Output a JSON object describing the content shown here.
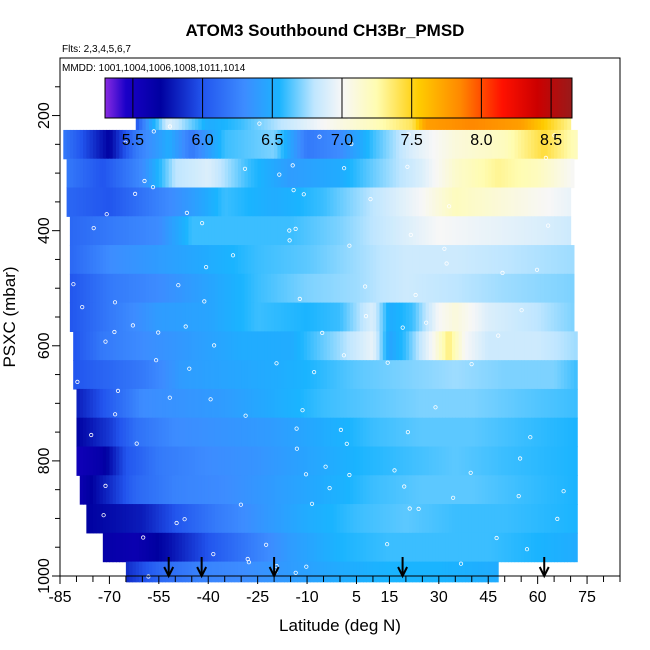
{
  "chart_data": {
    "type": "heatmap",
    "title": "ATOM3 Southbound CH3Br_PMSD",
    "flights_label": "Flts: 2,3,4,5,6,7",
    "mmdd_label": "MMDD: 1001,1004,1006,1008,1011,1014",
    "xlabel": "Latitude (deg N)",
    "ylabel": "PSXC (mbar)",
    "xlim": [
      -85,
      85
    ],
    "ylim": [
      1000,
      100
    ],
    "x_ticks": [
      -85,
      -70,
      -55,
      -40,
      -25,
      -10,
      5,
      15,
      30,
      45,
      60,
      75
    ],
    "x_tick_labels": [
      "-85",
      "-70",
      "-55",
      "-40",
      "-25",
      "-10",
      "5",
      "15",
      "30",
      "45",
      "60",
      "75"
    ],
    "y_ticks": [
      200,
      400,
      600,
      800,
      1000
    ],
    "y_tick_labels": [
      "200",
      "400",
      "600",
      "800",
      "1000"
    ],
    "colorbar": {
      "range": [
        5.3,
        8.65
      ],
      "ticks": [
        5.5,
        6.0,
        6.5,
        7.0,
        7.5,
        8.0,
        8.5
      ],
      "tick_labels": [
        "5.5",
        "6.0",
        "6.5",
        "7.0",
        "7.5",
        "8.0",
        "8.5"
      ],
      "stops": [
        {
          "v": 5.3,
          "c": "#8a2be2"
        },
        {
          "v": 5.45,
          "c": "#1a00c8"
        },
        {
          "v": 5.7,
          "c": "#0000a0"
        },
        {
          "v": 6.0,
          "c": "#2255ee"
        },
        {
          "v": 6.3,
          "c": "#3d8cff"
        },
        {
          "v": 6.55,
          "c": "#1ab4ff"
        },
        {
          "v": 6.8,
          "c": "#bfe6ff"
        },
        {
          "v": 7.0,
          "c": "#f7f7f7"
        },
        {
          "v": 7.25,
          "c": "#fffcb0"
        },
        {
          "v": 7.55,
          "c": "#ffcc00"
        },
        {
          "v": 7.85,
          "c": "#ff8800"
        },
        {
          "v": 8.15,
          "c": "#ff1100"
        },
        {
          "v": 8.4,
          "c": "#cc0000"
        },
        {
          "v": 8.65,
          "c": "#991a1a"
        }
      ]
    },
    "arrow_latitudes": [
      -52,
      -42,
      -20,
      19,
      62
    ],
    "bands": [
      {
        "p": [
          175,
          225
        ],
        "lat": [
          -62,
          70
        ],
        "k": [
          [
            -62,
            6.0
          ],
          [
            -58,
            6.4
          ],
          [
            -52,
            6.9
          ],
          [
            -40,
            6.5
          ],
          [
            -30,
            6.6
          ],
          [
            -18,
            6.8
          ],
          [
            -5,
            7.0
          ],
          [
            10,
            7.2
          ],
          [
            22,
            7.4
          ],
          [
            26,
            7.75
          ],
          [
            40,
            7.85
          ],
          [
            55,
            7.75
          ],
          [
            62,
            7.55
          ],
          [
            70,
            7.3
          ]
        ]
      },
      {
        "p": [
          225,
          275
        ],
        "lat": [
          -84,
          72
        ],
        "k": [
          [
            -84,
            6.2
          ],
          [
            -70,
            5.7
          ],
          [
            -62,
            6.2
          ],
          [
            -52,
            6.5
          ],
          [
            -45,
            6.2
          ],
          [
            -35,
            6.6
          ],
          [
            -20,
            6.7
          ],
          [
            -10,
            6.2
          ],
          [
            0,
            6.3
          ],
          [
            10,
            6.6
          ],
          [
            22,
            6.9
          ],
          [
            35,
            7.1
          ],
          [
            50,
            7.2
          ],
          [
            62,
            7.45
          ],
          [
            72,
            7.2
          ]
        ]
      },
      {
        "p": [
          275,
          325
        ],
        "lat": [
          -83,
          71
        ],
        "k": [
          [
            -83,
            6.2
          ],
          [
            -72,
            6.0
          ],
          [
            -60,
            6.3
          ],
          [
            -50,
            6.8
          ],
          [
            -40,
            6.9
          ],
          [
            -28,
            6.6
          ],
          [
            -15,
            6.4
          ],
          [
            0,
            6.5
          ],
          [
            12,
            6.7
          ],
          [
            25,
            6.9
          ],
          [
            35,
            7.15
          ],
          [
            48,
            7.3
          ],
          [
            60,
            7.2
          ],
          [
            71,
            7.0
          ]
        ]
      },
      {
        "p": [
          325,
          375
        ],
        "lat": [
          -83,
          70
        ],
        "k": [
          [
            -83,
            6.1
          ],
          [
            -70,
            6.0
          ],
          [
            -58,
            6.2
          ],
          [
            -45,
            6.4
          ],
          [
            -35,
            6.6
          ],
          [
            -20,
            6.5
          ],
          [
            -5,
            6.6
          ],
          [
            10,
            6.8
          ],
          [
            25,
            7.0
          ],
          [
            35,
            7.2
          ],
          [
            50,
            7.1
          ],
          [
            70,
            6.95
          ]
        ]
      },
      {
        "p": [
          375,
          425
        ],
        "lat": [
          -82,
          70
        ],
        "k": [
          [
            -82,
            6.1
          ],
          [
            -70,
            6.2
          ],
          [
            -55,
            6.3
          ],
          [
            -45,
            6.6
          ],
          [
            -30,
            6.6
          ],
          [
            -15,
            6.6
          ],
          [
            0,
            6.7
          ],
          [
            15,
            6.85
          ],
          [
            30,
            7.0
          ],
          [
            45,
            6.95
          ],
          [
            60,
            6.9
          ],
          [
            70,
            6.85
          ]
        ]
      },
      {
        "p": [
          425,
          475
        ],
        "lat": [
          -82,
          71
        ],
        "k": [
          [
            -82,
            6.1
          ],
          [
            -70,
            6.3
          ],
          [
            -55,
            6.4
          ],
          [
            -40,
            6.5
          ],
          [
            -25,
            6.6
          ],
          [
            -10,
            6.65
          ],
          [
            5,
            6.75
          ],
          [
            20,
            6.85
          ],
          [
            35,
            6.85
          ],
          [
            50,
            6.8
          ],
          [
            71,
            6.75
          ]
        ]
      },
      {
        "p": [
          475,
          525
        ],
        "lat": [
          -82,
          71
        ],
        "k": [
          [
            -82,
            6.0
          ],
          [
            -70,
            6.2
          ],
          [
            -55,
            6.3
          ],
          [
            -40,
            6.45
          ],
          [
            -25,
            6.6
          ],
          [
            -10,
            6.7
          ],
          [
            5,
            6.75
          ],
          [
            20,
            6.85
          ],
          [
            35,
            6.8
          ],
          [
            50,
            6.75
          ],
          [
            71,
            6.7
          ]
        ]
      },
      {
        "p": [
          525,
          575
        ],
        "lat": [
          -82,
          71
        ],
        "k": [
          [
            -82,
            6.0
          ],
          [
            -70,
            6.2
          ],
          [
            -55,
            6.4
          ],
          [
            -40,
            6.45
          ],
          [
            -25,
            6.6
          ],
          [
            -10,
            6.55
          ],
          [
            0,
            6.6
          ],
          [
            10,
            6.9
          ],
          [
            15,
            6.5
          ],
          [
            22,
            6.6
          ],
          [
            30,
            7.0
          ],
          [
            35,
            7.1
          ],
          [
            45,
            6.9
          ],
          [
            60,
            6.8
          ],
          [
            71,
            6.7
          ]
        ]
      },
      {
        "p": [
          575,
          625
        ],
        "lat": [
          -81,
          72
        ],
        "k": [
          [
            -81,
            6.0
          ],
          [
            -72,
            6.2
          ],
          [
            -60,
            6.3
          ],
          [
            -45,
            6.4
          ],
          [
            -30,
            6.5
          ],
          [
            -15,
            6.5
          ],
          [
            0,
            6.75
          ],
          [
            10,
            6.95
          ],
          [
            15,
            6.45
          ],
          [
            20,
            6.6
          ],
          [
            28,
            7.0
          ],
          [
            33,
            7.35
          ],
          [
            38,
            7.0
          ],
          [
            45,
            6.85
          ],
          [
            60,
            6.85
          ],
          [
            72,
            6.75
          ]
        ]
      },
      {
        "p": [
          625,
          675
        ],
        "lat": [
          -81,
          72
        ],
        "k": [
          [
            -81,
            6.0
          ],
          [
            -70,
            6.1
          ],
          [
            -60,
            6.2
          ],
          [
            -48,
            6.4
          ],
          [
            -35,
            6.45
          ],
          [
            -20,
            6.5
          ],
          [
            -10,
            6.55
          ],
          [
            5,
            6.65
          ],
          [
            20,
            6.7
          ],
          [
            35,
            6.75
          ],
          [
            50,
            6.7
          ],
          [
            65,
            6.7
          ],
          [
            72,
            6.6
          ]
        ]
      },
      {
        "p": [
          675,
          725
        ],
        "lat": [
          -80,
          72
        ],
        "k": [
          [
            -80,
            5.8
          ],
          [
            -72,
            6.0
          ],
          [
            -60,
            6.3
          ],
          [
            -48,
            6.35
          ],
          [
            -35,
            6.4
          ],
          [
            -20,
            6.5
          ],
          [
            -5,
            6.6
          ],
          [
            10,
            6.65
          ],
          [
            25,
            6.7
          ],
          [
            40,
            6.7
          ],
          [
            55,
            6.65
          ],
          [
            72,
            6.6
          ]
        ]
      },
      {
        "p": [
          725,
          775
        ],
        "lat": [
          -80,
          72
        ],
        "k": [
          [
            -80,
            5.7
          ],
          [
            -70,
            5.9
          ],
          [
            -62,
            6.15
          ],
          [
            -50,
            6.3
          ],
          [
            -35,
            6.35
          ],
          [
            -20,
            6.4
          ],
          [
            -5,
            6.5
          ],
          [
            10,
            6.6
          ],
          [
            25,
            6.65
          ],
          [
            40,
            6.65
          ],
          [
            55,
            6.6
          ],
          [
            72,
            6.55
          ]
        ]
      },
      {
        "p": [
          775,
          825
        ],
        "lat": [
          -80,
          72
        ],
        "k": [
          [
            -80,
            5.55
          ],
          [
            -72,
            5.65
          ],
          [
            -65,
            6.0
          ],
          [
            -55,
            6.2
          ],
          [
            -40,
            6.3
          ],
          [
            -25,
            6.35
          ],
          [
            -10,
            6.45
          ],
          [
            5,
            6.55
          ],
          [
            20,
            6.6
          ],
          [
            35,
            6.65
          ],
          [
            50,
            6.6
          ],
          [
            72,
            6.55
          ]
        ]
      },
      {
        "p": [
          825,
          875
        ],
        "lat": [
          -79,
          72
        ],
        "k": [
          [
            -79,
            5.6
          ],
          [
            -70,
            5.85
          ],
          [
            -62,
            6.1
          ],
          [
            -50,
            6.25
          ],
          [
            -35,
            6.3
          ],
          [
            -20,
            6.4
          ],
          [
            -5,
            6.5
          ],
          [
            10,
            6.6
          ],
          [
            25,
            6.65
          ],
          [
            40,
            6.65
          ],
          [
            55,
            6.6
          ],
          [
            72,
            6.55
          ]
        ]
      },
      {
        "p": [
          875,
          925
        ],
        "lat": [
          -77,
          72
        ],
        "k": [
          [
            -77,
            5.7
          ],
          [
            -68,
            5.75
          ],
          [
            -60,
            5.8
          ],
          [
            -50,
            6.0
          ],
          [
            -38,
            6.2
          ],
          [
            -25,
            6.35
          ],
          [
            -10,
            6.5
          ],
          [
            5,
            6.6
          ],
          [
            20,
            6.65
          ],
          [
            35,
            6.6
          ],
          [
            50,
            6.6
          ],
          [
            72,
            6.55
          ]
        ]
      },
      {
        "p": [
          925,
          975
        ],
        "lat": [
          -72,
          72
        ],
        "k": [
          [
            -72,
            5.65
          ],
          [
            -62,
            5.6
          ],
          [
            -52,
            5.75
          ],
          [
            -40,
            6.0
          ],
          [
            -28,
            6.2
          ],
          [
            -15,
            6.4
          ],
          [
            0,
            6.55
          ],
          [
            15,
            6.6
          ],
          [
            30,
            6.6
          ],
          [
            45,
            6.6
          ],
          [
            60,
            6.55
          ],
          [
            72,
            6.5
          ]
        ]
      },
      {
        "p": [
          975,
          1010
        ],
        "lat": [
          -65,
          48
        ],
        "k": [
          [
            -65,
            5.85
          ],
          [
            -55,
            6.1
          ],
          [
            -42,
            6.25
          ],
          [
            -30,
            6.3
          ],
          [
            -15,
            6.4
          ],
          [
            0,
            6.5
          ],
          [
            15,
            6.55
          ],
          [
            30,
            6.55
          ],
          [
            48,
            6.5
          ]
        ]
      }
    ]
  }
}
